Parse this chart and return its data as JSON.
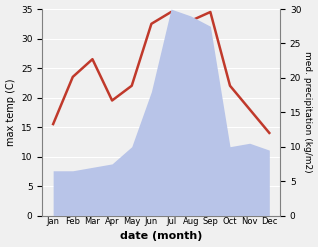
{
  "months": [
    "Jan",
    "Feb",
    "Mar",
    "Apr",
    "May",
    "Jun",
    "Jul",
    "Aug",
    "Sep",
    "Oct",
    "Nov",
    "Dec"
  ],
  "temperature": [
    15.5,
    23.5,
    26.5,
    19.5,
    22.0,
    32.5,
    34.5,
    33.0,
    34.5,
    22.0,
    18.0,
    14.0
  ],
  "precipitation": [
    6.5,
    6.5,
    7.0,
    7.5,
    10.0,
    18.0,
    30.0,
    29.0,
    27.5,
    10.0,
    10.5,
    9.5
  ],
  "temp_color": "#c0392b",
  "precip_fill_color": "#b8c4e8",
  "precip_fill_alpha": 1.0,
  "ylim_left": [
    0,
    35
  ],
  "ylim_right": [
    0,
    30
  ],
  "yticks_left": [
    0,
    5,
    10,
    15,
    20,
    25,
    30,
    35
  ],
  "yticks_right": [
    0,
    5,
    10,
    15,
    20,
    25,
    30
  ],
  "xlabel": "date (month)",
  "ylabel_left": "max temp (C)",
  "ylabel_right": "med. precipitation (kg/m2)",
  "bg_color": "#f0f0f0",
  "linewidth_temp": 1.8
}
